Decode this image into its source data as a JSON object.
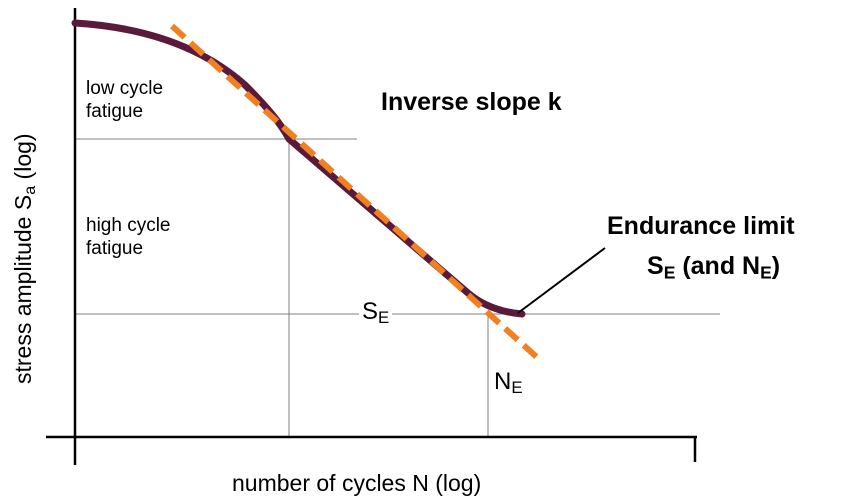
{
  "labels": {
    "y_axis_main": "stress amplitude S",
    "y_axis_sub": "a",
    "y_axis_suffix": " (log)",
    "x_axis": "number of cycles  N (log)",
    "low_cycle_1": "low cycle",
    "low_cycle_2": "fatigue",
    "high_cycle_1": "high cycle",
    "high_cycle_2": "fatigue",
    "inverse_slope": "Inverse slope k",
    "endurance_line1": "Endurance limit",
    "endurance_s": "S",
    "endurance_s_sub": "E",
    "endurance_mid": " (and N",
    "endurance_n_sub": "E",
    "endurance_end": ")",
    "se_main": "S",
    "se_sub": "E",
    "ne_main": "N",
    "ne_sub": "E"
  },
  "colors": {
    "curve": "#5a1a3a",
    "slope_line": "#f08020",
    "axis": "#000000",
    "grid": "#808080"
  }
}
